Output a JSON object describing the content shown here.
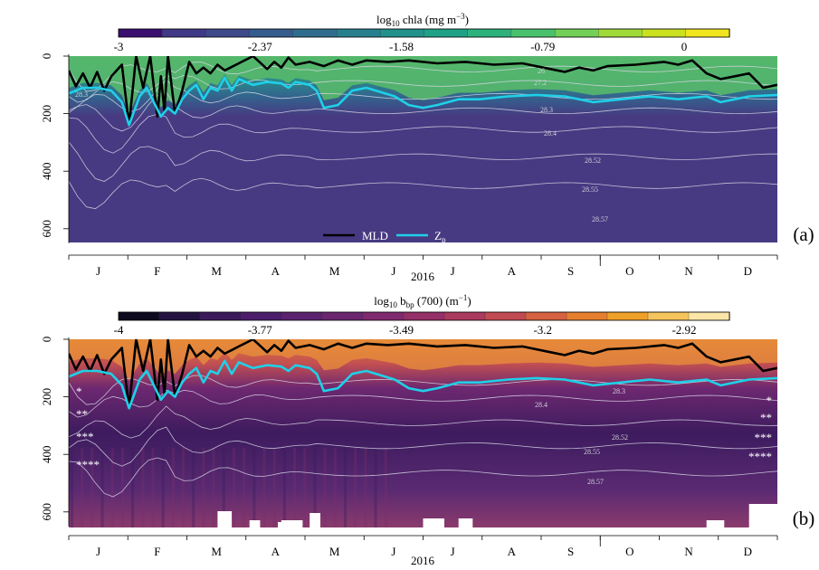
{
  "chart_data": [
    {
      "type": "heatmap",
      "panel_label": "(a)",
      "colorbar": {
        "label_prefix": "log",
        "label_sub": "10",
        "label_main": " chla (mg m",
        "label_sup": "−3",
        "label_suffix": ")",
        "ticks": [
          "-3",
          "-2.37",
          "-1.58",
          "-0.79",
          "0"
        ],
        "colors": [
          "#3b0f70",
          "#403987",
          "#3e4a89",
          "#365c8d",
          "#2e6d8e",
          "#277f8e",
          "#21918c",
          "#1fa187",
          "#2db27d",
          "#4ac16d",
          "#73d056",
          "#a0da39",
          "#cae11f",
          "#f1e51d"
        ]
      },
      "y_ticks": [
        "0",
        "200",
        "400",
        "600"
      ],
      "y_range": [
        0,
        650
      ],
      "months": [
        "J",
        "F",
        "M",
        "A",
        "M",
        "J",
        "J",
        "A",
        "S",
        "O",
        "N",
        "D"
      ],
      "year": "2016",
      "legend": [
        {
          "name": "MLD",
          "color": "#000000"
        },
        {
          "name": "Z",
          "sub": "p",
          "color": "#1fd0e8"
        }
      ],
      "isopycnals": [
        "26",
        "27.2",
        "28.3",
        "28.3",
        "28.4",
        "28.52",
        "28.55",
        "28.57"
      ],
      "background": "#473a82",
      "surface_color": "#3fae6e"
    },
    {
      "type": "heatmap",
      "panel_label": "(b)",
      "colorbar": {
        "label_prefix": "log",
        "label_sub": "10",
        "label_main": " b",
        "label_sub2": "bp",
        "label_after": " (700) (m",
        "label_sup": "−1",
        "label_suffix": ")",
        "ticks": [
          "-4",
          "-3.77",
          "-3.49",
          "-3.2",
          "-2.92"
        ],
        "colors": [
          "#0d0a1f",
          "#241340",
          "#3b1a5c",
          "#4c1e6a",
          "#5a226f",
          "#6b2670",
          "#7f2a6e",
          "#952f68",
          "#ab3a5f",
          "#c14b52",
          "#d56241",
          "#e57f2e",
          "#efa028",
          "#f6c45c",
          "#fbe6a8"
        ]
      },
      "y_ticks": [
        "0",
        "200",
        "400",
        "600"
      ],
      "y_range": [
        0,
        650
      ],
      "months": [
        "J",
        "F",
        "M",
        "A",
        "M",
        "J",
        "J",
        "A",
        "S",
        "O",
        "N",
        "D"
      ],
      "year": "2016",
      "isopycnals": [
        "28.3",
        "28.4",
        "28.52",
        "28.55",
        "28.57"
      ],
      "asterisks_left": [
        "*",
        "**",
        "***",
        "****"
      ],
      "asterisks_right": [
        "*",
        "**",
        "***",
        "****"
      ],
      "background": "#5a2a72",
      "surface_color": "#d9623f"
    }
  ]
}
